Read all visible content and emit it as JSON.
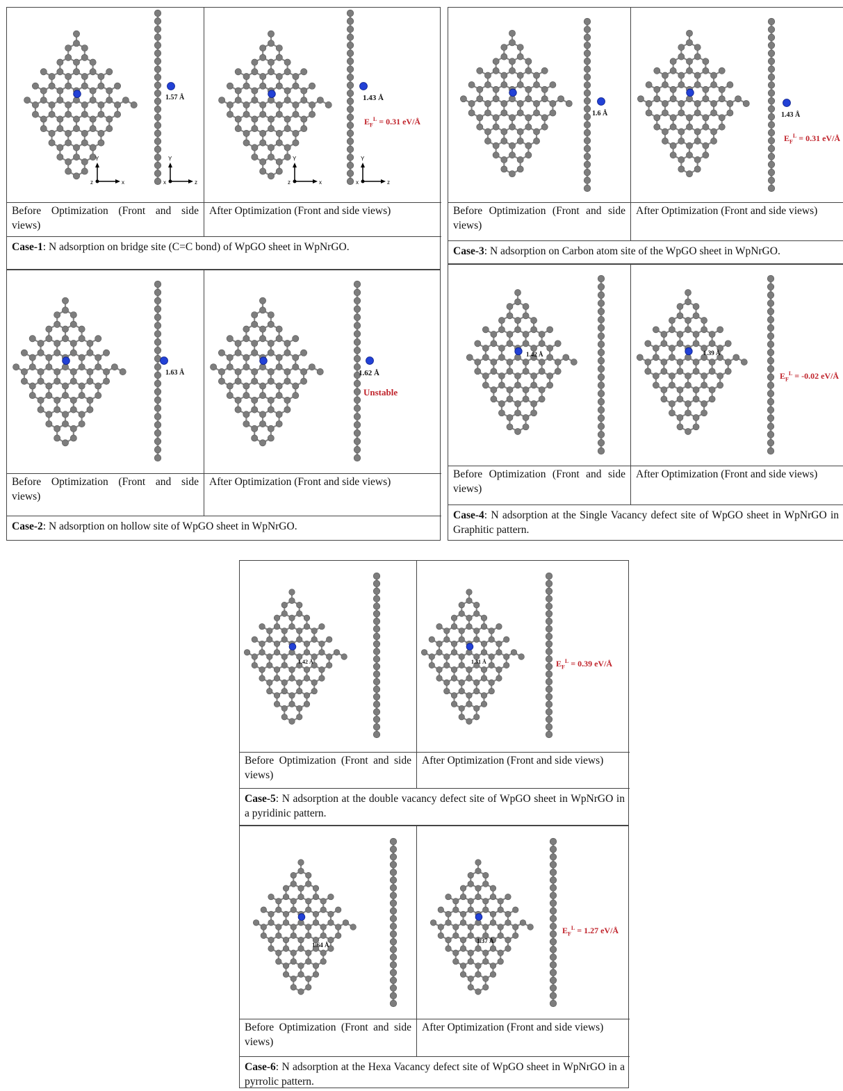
{
  "colors": {
    "carbon": "#7d7d7d",
    "hydrogen": "#bdbdbd",
    "nitrogen": "#2241d6",
    "energy_text": "#c0232b",
    "bond": "#8a8a8a"
  },
  "icons": [
    "axis-triad-icon",
    "arrow-icon"
  ],
  "cases": [
    {
      "id": "case1",
      "caption_head": "Case-1",
      "caption_rest": ": N adsorption on bridge site (C=C bond) of WpGO sheet in WpNrGO.",
      "before_label": "Before Optimization (Front and side views)",
      "after_label": "After Optimization (Front and side views)",
      "before_dist": "1.57 Å",
      "after_dist": "1.43 Å",
      "energy": "Eₑᴸ = 0.31 eV/Å",
      "energy_display": "EF L = 0.31 eV/Å",
      "axis_front": [
        "Y",
        "z",
        "x"
      ],
      "axis_side": [
        "Y",
        "x",
        "z"
      ]
    },
    {
      "id": "case2",
      "caption_head": "Case-2",
      "caption_rest": ": N adsorption on hollow site of WpGO sheet in WpNrGO.",
      "before_label": "Before Optimization (Front and side views)",
      "after_label": "After Optimization (Front and side views)",
      "before_dist": "1.63 Å",
      "after_dist": "1.62 Å",
      "status": "Unstable"
    },
    {
      "id": "case3",
      "caption_head": "Case-3",
      "caption_rest": ": N adsorption on Carbon atom site of the WpGO sheet in WpNrGO.",
      "before_label": "Before Optimization (Front and side views)",
      "after_label": "After Optimization (Front and side views)",
      "before_dist": "1.6 Å",
      "after_dist": "1.43 Å",
      "energy": "EF L = 0.31 eV/Å"
    },
    {
      "id": "case4",
      "caption_head": "Case-4",
      "caption_rest": ": N adsorption at the Single Vacancy defect site of WpGO sheet in WpNrGO in Graphitic pattern.",
      "before_label": "Before Optimization (Front and side views)",
      "after_label": "After Optimization (Front and side views)",
      "before_dist": "1.42 Å",
      "after_dist": "1.39 Å",
      "energy": "EF L = -0.02 eV/Å"
    },
    {
      "id": "case5",
      "caption_head": "Case-5",
      "caption_rest": ": N adsorption at the double vacancy defect site of WpGO sheet in WpNrGO in a pyridinic pattern.",
      "before_label": "Before Optimization (Front and side views)",
      "after_label": "After Optimization (Front and side views)",
      "before_dist": "1.42 Å",
      "after_dist": "1.31 Å",
      "energy": "EF L = 0.39 eV/Å"
    },
    {
      "id": "case6",
      "caption_head": "Case-6",
      "caption_rest": ": N adsorption at the Hexa Vacancy defect site of WpGO sheet in WpNrGO in a pyrrolic pattern.",
      "before_label": "Before Optimization (Front and side views)",
      "after_label": "After Optimization (Front and side views)",
      "before_dist": "1.64 Å",
      "after_dist": "1.37 Å",
      "energy": "EF L = 1.27 eV/Å"
    }
  ],
  "energy_parts": {
    "prefix": "E",
    "sub": "F",
    "sup": "L"
  }
}
